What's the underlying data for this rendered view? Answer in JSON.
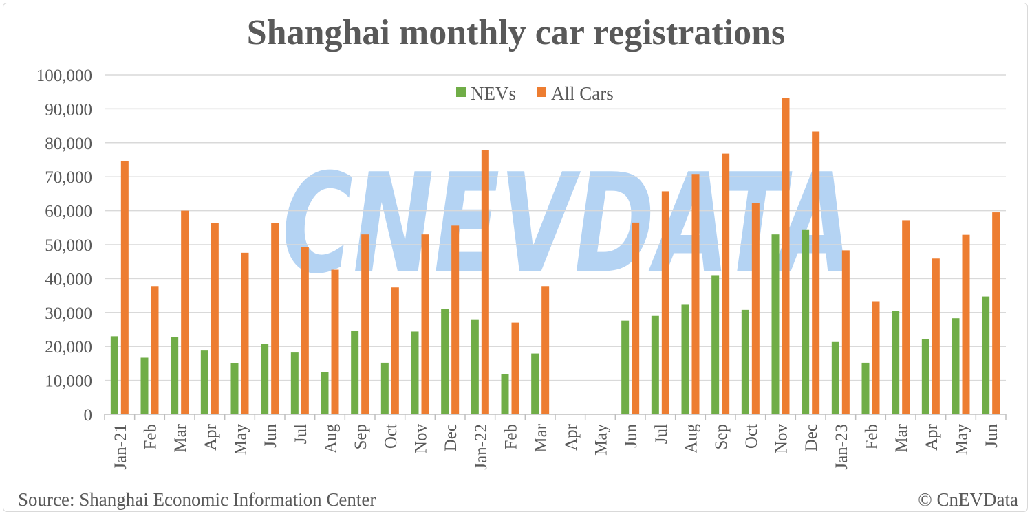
{
  "title": "Shanghai monthly car registrations",
  "source": "Source: Shanghai Economic Information Center",
  "copyright": "© CnEVData",
  "watermark": "CNEVDATA",
  "colors": {
    "nev": "#70ad47",
    "all": "#ed7d31",
    "grid": "#d9d9d9",
    "text": "#595959"
  },
  "chart_data": {
    "type": "bar",
    "title": "Shanghai monthly car registrations",
    "xlabel": "",
    "ylabel": "",
    "ylim": [
      0,
      100000
    ],
    "yticks": [
      "0",
      "10,000",
      "20,000",
      "30,000",
      "40,000",
      "50,000",
      "60,000",
      "70,000",
      "80,000",
      "90,000",
      "100,000"
    ],
    "grid": true,
    "legend": "top-center",
    "categories": [
      "Jan-21",
      "Feb",
      "Mar",
      "Apr",
      "May",
      "Jun",
      "Jul",
      "Aug",
      "Sep",
      "Oct",
      "Nov",
      "Dec",
      "Jan-22",
      "Feb",
      "Mar",
      "Apr",
      "May",
      "Jun",
      "Jul",
      "Aug",
      "Sep",
      "Oct",
      "Nov",
      "Dec",
      "Jan-23",
      "Feb",
      "Mar",
      "Apr",
      "May",
      "Jun"
    ],
    "series": [
      {
        "name": "NEVs",
        "values": [
          23000,
          16700,
          22800,
          18800,
          15000,
          20800,
          18200,
          12500,
          24500,
          15200,
          24400,
          31100,
          27800,
          11800,
          17900,
          null,
          null,
          27600,
          29000,
          32300,
          41000,
          30800,
          53000,
          54300,
          21300,
          15200,
          30500,
          22200,
          28300,
          34700
        ]
      },
      {
        "name": "All Cars",
        "values": [
          74700,
          37800,
          60000,
          56300,
          47600,
          56300,
          49200,
          42600,
          53000,
          37400,
          53000,
          55600,
          77900,
          27000,
          37800,
          null,
          null,
          56500,
          65700,
          70800,
          76800,
          62300,
          93200,
          83300,
          48300,
          33300,
          57200,
          45900,
          52900,
          59500
        ]
      }
    ]
  }
}
